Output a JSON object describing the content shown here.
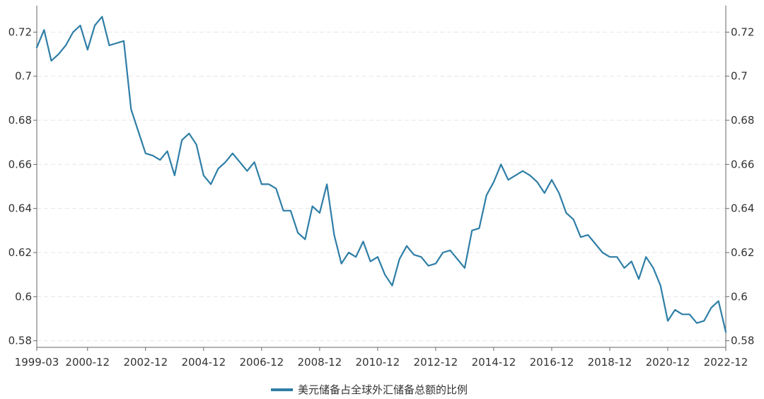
{
  "chart_data": {
    "type": "line",
    "title": "",
    "xlabel": "",
    "ylabel": "",
    "ylim": [
      0.577,
      0.732
    ],
    "y_ticks": [
      0.58,
      0.6,
      0.62,
      0.64,
      0.66,
      0.68,
      0.7,
      0.72
    ],
    "y_tick_labels": [
      "0.58",
      "0.6",
      "0.62",
      "0.64",
      "0.66",
      "0.68",
      "0.7",
      "0.72"
    ],
    "x_tick_labels": [
      "1999-03",
      "2000-12",
      "2002-12",
      "2004-12",
      "2006-12",
      "2008-12",
      "2010-12",
      "2012-12",
      "2014-12",
      "2016-12",
      "2018-12",
      "2020-12",
      "2022-12"
    ],
    "x_tick_dates": [
      "1999-03",
      "2000-12",
      "2002-12",
      "2004-12",
      "2006-12",
      "2008-12",
      "2010-12",
      "2012-12",
      "2014-12",
      "2016-12",
      "2018-12",
      "2020-12",
      "2022-12"
    ],
    "grid": true,
    "dual_y_axis": true,
    "legend_position": "bottom-center",
    "series": [
      {
        "name": "美元储备占全球外汇储备总额的比例",
        "color": "#2E7EA6",
        "x": [
          "1999-03",
          "1999-06",
          "1999-09",
          "1999-12",
          "2000-03",
          "2000-06",
          "2000-09",
          "2000-12",
          "2001-03",
          "2001-06",
          "2001-09",
          "2001-12",
          "2002-03",
          "2002-06",
          "2002-09",
          "2002-12",
          "2003-03",
          "2003-06",
          "2003-09",
          "2003-12",
          "2004-03",
          "2004-06",
          "2004-09",
          "2004-12",
          "2005-03",
          "2005-06",
          "2005-09",
          "2005-12",
          "2006-03",
          "2006-06",
          "2006-09",
          "2006-12",
          "2007-03",
          "2007-06",
          "2007-09",
          "2007-12",
          "2008-03",
          "2008-06",
          "2008-09",
          "2008-12",
          "2009-03",
          "2009-06",
          "2009-09",
          "2009-12",
          "2010-03",
          "2010-06",
          "2010-09",
          "2010-12",
          "2011-03",
          "2011-06",
          "2011-09",
          "2011-12",
          "2012-03",
          "2012-06",
          "2012-09",
          "2012-12",
          "2013-03",
          "2013-06",
          "2013-09",
          "2013-12",
          "2014-03",
          "2014-06",
          "2014-09",
          "2014-12",
          "2015-03",
          "2015-06",
          "2015-09",
          "2015-12",
          "2016-03",
          "2016-06",
          "2016-09",
          "2016-12",
          "2017-03",
          "2017-06",
          "2017-09",
          "2017-12",
          "2018-03",
          "2018-06",
          "2018-09",
          "2018-12",
          "2019-03",
          "2019-06",
          "2019-09",
          "2019-12",
          "2020-03",
          "2020-06",
          "2020-09",
          "2020-12",
          "2021-03",
          "2021-06",
          "2021-09",
          "2021-12",
          "2022-03",
          "2022-06",
          "2022-09",
          "2022-12"
        ],
        "values": [
          0.713,
          0.721,
          0.707,
          0.71,
          0.714,
          0.72,
          0.723,
          0.712,
          0.723,
          0.727,
          0.714,
          0.715,
          0.716,
          0.685,
          0.675,
          0.665,
          0.664,
          0.662,
          0.666,
          0.655,
          0.671,
          0.674,
          0.669,
          0.655,
          0.651,
          0.658,
          0.661,
          0.665,
          0.661,
          0.657,
          0.661,
          0.651,
          0.651,
          0.649,
          0.639,
          0.639,
          0.629,
          0.626,
          0.641,
          0.638,
          0.651,
          0.628,
          0.615,
          0.62,
          0.618,
          0.625,
          0.616,
          0.618,
          0.61,
          0.605,
          0.617,
          0.623,
          0.619,
          0.618,
          0.614,
          0.615,
          0.62,
          0.621,
          0.617,
          0.613,
          0.63,
          0.631,
          0.646,
          0.652,
          0.66,
          0.653,
          0.655,
          0.657,
          0.655,
          0.652,
          0.647,
          0.653,
          0.647,
          0.638,
          0.635,
          0.627,
          0.628,
          0.624,
          0.62,
          0.618,
          0.618,
          0.613,
          0.616,
          0.608,
          0.618,
          0.613,
          0.605,
          0.589,
          0.594,
          0.592,
          0.592,
          0.588,
          0.589,
          0.595,
          0.598,
          0.584
        ]
      }
    ]
  }
}
